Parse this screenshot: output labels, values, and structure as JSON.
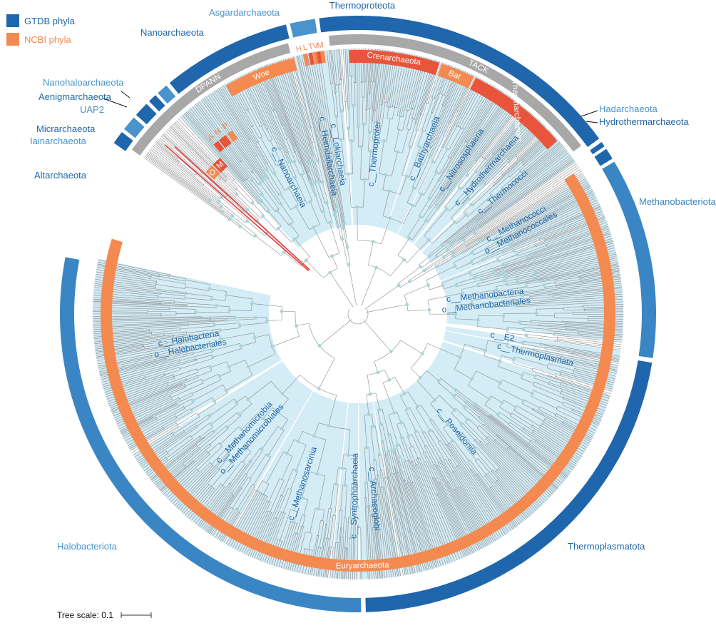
{
  "legend": [
    {
      "label": "GTDB phyla",
      "color": "#1f66ad"
    },
    {
      "label": "NCBI phyla",
      "color": "#f58a51"
    }
  ],
  "scale": {
    "label": "Tree scale: 0.1"
  },
  "colors": {
    "gtdb_dark": "#1f66ad",
    "gtdb_mid": "#3a86c4",
    "gtdb_light": "#4a93cc",
    "ncbi_orange": "#f58a51",
    "ncbi_red": "#e8553a",
    "superphylum_gray": "#a8a8a8",
    "clade_fill": "#d3ecf5",
    "branch": "#8c8c8c",
    "node": "#a9d4d8",
    "highlight_branch": "#e83a3a",
    "label_blue": "#1f66a8",
    "label_light_blue": "#4a93cc",
    "label_orange": "#f58a51"
  },
  "gtdb_phyla": [
    {
      "label": "Thermoproteota",
      "start": 352.5,
      "end": 54,
      "color": "#1f66ad"
    },
    {
      "label": "Hadarchaeota",
      "start": 54.8,
      "end": 55.8,
      "color": "#1f66ad"
    },
    {
      "label": "Hydrothermarchaeota",
      "start": 56.4,
      "end": 58.6,
      "color": "#1f66ad"
    },
    {
      "label": "Methanobacteriota",
      "start": 59.3,
      "end": 98.5,
      "color": "#3a86c4"
    },
    {
      "label": "Thermoplasmatota",
      "start": 99.4,
      "end": 178.5,
      "color": "#1f66ad"
    },
    {
      "label": "Halobacteriota",
      "start": 179.4,
      "end": 281,
      "color": "#3a86c4"
    },
    {
      "label": "Altarchaeota",
      "start": 305,
      "end": 307.6,
      "color": "#1f66ad"
    },
    {
      "label": "Iainarchaeota",
      "start": 308.3,
      "end": 311.2,
      "color": "#4a93cc"
    },
    {
      "label": "Micrarchaeota",
      "start": 311.9,
      "end": 314.8,
      "color": "#1f66ad"
    },
    {
      "label": "Aenigmarchaeota",
      "start": 315.5,
      "end": 317.2,
      "color": "#1f66ad"
    },
    {
      "label": "Nanohaloarchaeota",
      "start": 317.8,
      "end": 320,
      "color": "#4a93cc"
    },
    {
      "label": "Nanoarchaeota",
      "start": 320.8,
      "end": 346,
      "color": "#1f66ad"
    },
    {
      "label": "Asgardarchaeota",
      "start": 346.8,
      "end": 351.7,
      "color": "#4a93cc"
    }
  ],
  "superphyla": [
    {
      "label": "DPANN",
      "start": 306,
      "end": 345.5
    },
    {
      "label": "TACK",
      "start": 354,
      "end": 53
    }
  ],
  "ncbi_phyla": [
    {
      "label": "Euryarchaeota",
      "start": 57,
      "end": 287,
      "color": "#f58a51"
    },
    {
      "label": "Woe",
      "start": 330,
      "end": 346,
      "color": "#f58a51"
    },
    {
      "label": "Crenarchaeota",
      "start": 358,
      "end": 18,
      "color": "#e8553a"
    },
    {
      "label": "Bat",
      "start": 18.5,
      "end": 26,
      "color": "#f58a51"
    },
    {
      "label": "Thaumarchaeota",
      "start": 26.5,
      "end": 49,
      "color": "#e8553a"
    },
    {
      "label": "O",
      "start": 313,
      "end": 315.5,
      "color": "#f58a51"
    },
    {
      "label": "M",
      "start": 315.8,
      "end": 318.5,
      "color": "#e8553a"
    },
    {
      "label": "A",
      "start": 319.5,
      "end": 321,
      "color": "#e8553a"
    },
    {
      "label": "N",
      "start": 321.3,
      "end": 323.5,
      "color": "#e8553a"
    },
    {
      "label": "P",
      "start": 324,
      "end": 325.5,
      "color": "#f58a51"
    }
  ],
  "asgard_ncbi": [
    {
      "label": "H"
    },
    {
      "label": "L"
    },
    {
      "label": "T"
    },
    {
      "label": "V"
    },
    {
      "label": "M"
    }
  ],
  "clade_labels": [
    {
      "lines": [
        "c__Nanoarchaeia"
      ]
    },
    {
      "lines": [
        "c__Lokiarchaeia",
        "c__Heimdallarchaeia"
      ]
    },
    {
      "lines": [
        "c__Thermoprotei"
      ]
    },
    {
      "lines": [
        "c__Bathyarchaeia"
      ]
    },
    {
      "lines": [
        "c__Nitrososphaeria"
      ]
    },
    {
      "lines": [
        "c__Hydrothermarchaeia"
      ]
    },
    {
      "lines": [
        "c__Thermococci"
      ]
    },
    {
      "lines": [
        "c__Methanococci",
        "o__Methanococcales"
      ]
    },
    {
      "lines": [
        "c__Methanobacteria",
        "o__Methanobacteriales"
      ]
    },
    {
      "lines": [
        "c__E2"
      ]
    },
    {
      "lines": [
        "c__Thermoplasmata"
      ]
    },
    {
      "lines": [
        "c__Poseidoniia"
      ]
    },
    {
      "lines": [
        "c__Archaeoglobi"
      ]
    },
    {
      "lines": [
        "c__Syntrophoarchaeia"
      ]
    },
    {
      "lines": [
        "c__Methanosarcinia"
      ]
    },
    {
      "lines": [
        "c__Methanomicrobia",
        "o__Methanomicrobiales"
      ]
    },
    {
      "lines": [
        "c__Halobacteria",
        "o__Halobacteriales"
      ]
    }
  ],
  "clade_regions": [
    {
      "start": 318,
      "end": 345
    },
    {
      "start": 345.5,
      "end": 356
    },
    {
      "start": 357,
      "end": 18
    },
    {
      "start": 18.5,
      "end": 26
    },
    {
      "start": 26.5,
      "end": 38
    },
    {
      "start": 39,
      "end": 45
    },
    {
      "start": 46,
      "end": 55
    },
    {
      "start": 59,
      "end": 68
    },
    {
      "start": 68.5,
      "end": 96
    },
    {
      "start": 98,
      "end": 100.5
    },
    {
      "start": 101,
      "end": 107
    },
    {
      "start": 108,
      "end": 170
    },
    {
      "start": 170.5,
      "end": 179.5
    },
    {
      "start": 180,
      "end": 186
    },
    {
      "start": 186.5,
      "end": 210
    },
    {
      "start": 210.5,
      "end": 238
    },
    {
      "start": 239,
      "end": 282
    }
  ]
}
